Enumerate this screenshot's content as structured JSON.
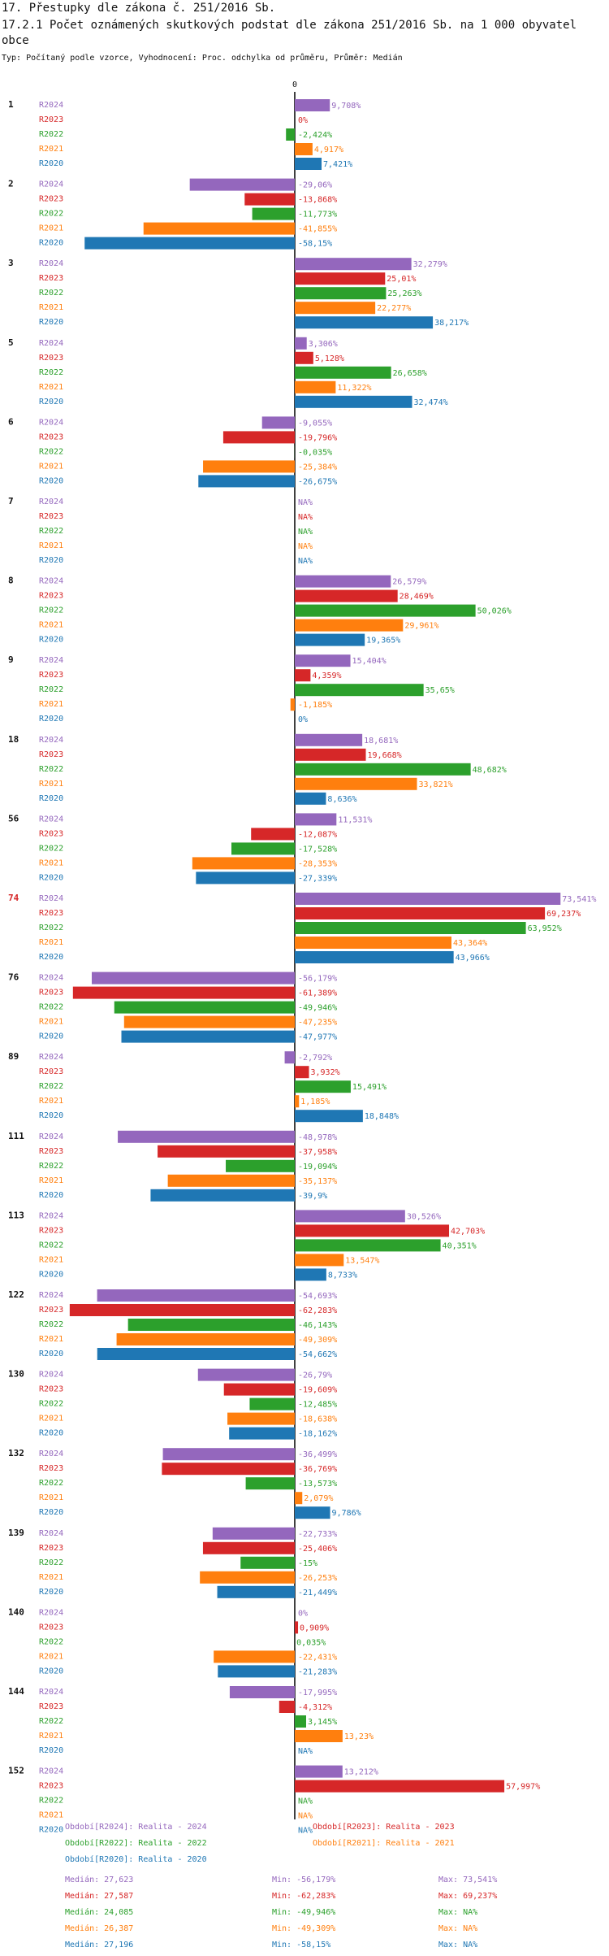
{
  "title": "17. Přestupky dle zákona č. 251/2016 Sb.",
  "subtitle": "17.2.1 Počet oznámených skutkových podstat dle zákona 251/2016 Sb. na 1 000 obyvatel obce",
  "type_line": "Typ: Počítaný podle vzorce, Vyhodnocení: Proc. odchylka od průměru, Průměr: Medián",
  "colors": {
    "R2024": "#9467bd",
    "R2023": "#d62728",
    "R2022": "#2ca02c",
    "R2021": "#ff7f0e",
    "R2020": "#1f77b4",
    "highlight": "#d62728"
  },
  "highlight_group": "74",
  "chart_data": {
    "type": "bar",
    "orientation": "horizontal",
    "axis_zero_label": "0",
    "xlim": [
      -62.283,
      73.541
    ],
    "series_names": [
      "R2024",
      "R2023",
      "R2022",
      "R2021",
      "R2020"
    ],
    "groups": [
      {
        "label": "1",
        "rows": [
          {
            "s": "R2024",
            "v": 9.708,
            "t": "9,708%"
          },
          {
            "s": "R2023",
            "v": 0,
            "t": "0%"
          },
          {
            "s": "R2022",
            "v": -2.424,
            "t": "-2,424%"
          },
          {
            "s": "R2021",
            "v": 4.917,
            "t": "4,917%"
          },
          {
            "s": "R2020",
            "v": 7.421,
            "t": "7,421%"
          }
        ]
      },
      {
        "label": "2",
        "rows": [
          {
            "s": "R2024",
            "v": -29.06,
            "t": "-29,06%"
          },
          {
            "s": "R2023",
            "v": -13.868,
            "t": "-13,868%"
          },
          {
            "s": "R2022",
            "v": -11.773,
            "t": "-11,773%"
          },
          {
            "s": "R2021",
            "v": -41.855,
            "t": "-41,855%"
          },
          {
            "s": "R2020",
            "v": -58.15,
            "t": "-58,15%"
          }
        ]
      },
      {
        "label": "3",
        "rows": [
          {
            "s": "R2024",
            "v": 32.279,
            "t": "32,279%"
          },
          {
            "s": "R2023",
            "v": 25.01,
            "t": "25,01%"
          },
          {
            "s": "R2022",
            "v": 25.263,
            "t": "25,263%"
          },
          {
            "s": "R2021",
            "v": 22.277,
            "t": "22,277%"
          },
          {
            "s": "R2020",
            "v": 38.217,
            "t": "38,217%"
          }
        ]
      },
      {
        "label": "5",
        "rows": [
          {
            "s": "R2024",
            "v": 3.306,
            "t": "3,306%"
          },
          {
            "s": "R2023",
            "v": 5.128,
            "t": "5,128%"
          },
          {
            "s": "R2022",
            "v": 26.658,
            "t": "26,658%"
          },
          {
            "s": "R2021",
            "v": 11.322,
            "t": "11,322%"
          },
          {
            "s": "R2020",
            "v": 32.474,
            "t": "32,474%"
          }
        ]
      },
      {
        "label": "6",
        "rows": [
          {
            "s": "R2024",
            "v": -9.055,
            "t": "-9,055%"
          },
          {
            "s": "R2023",
            "v": -19.796,
            "t": "-19,796%"
          },
          {
            "s": "R2022",
            "v": -0.035,
            "t": "-0,035%"
          },
          {
            "s": "R2021",
            "v": -25.384,
            "t": "-25,384%"
          },
          {
            "s": "R2020",
            "v": -26.675,
            "t": "-26,675%"
          }
        ]
      },
      {
        "label": "7",
        "rows": [
          {
            "s": "R2024",
            "v": null,
            "t": "NA%"
          },
          {
            "s": "R2023",
            "v": null,
            "t": "NA%"
          },
          {
            "s": "R2022",
            "v": null,
            "t": "NA%"
          },
          {
            "s": "R2021",
            "v": null,
            "t": "NA%"
          },
          {
            "s": "R2020",
            "v": null,
            "t": "NA%"
          }
        ]
      },
      {
        "label": "8",
        "rows": [
          {
            "s": "R2024",
            "v": 26.579,
            "t": "26,579%"
          },
          {
            "s": "R2023",
            "v": 28.469,
            "t": "28,469%"
          },
          {
            "s": "R2022",
            "v": 50.026,
            "t": "50,026%"
          },
          {
            "s": "R2021",
            "v": 29.961,
            "t": "29,961%"
          },
          {
            "s": "R2020",
            "v": 19.365,
            "t": "19,365%"
          }
        ]
      },
      {
        "label": "9",
        "rows": [
          {
            "s": "R2024",
            "v": 15.404,
            "t": "15,404%"
          },
          {
            "s": "R2023",
            "v": 4.359,
            "t": "4,359%"
          },
          {
            "s": "R2022",
            "v": 35.65,
            "t": "35,65%"
          },
          {
            "s": "R2021",
            "v": -1.185,
            "t": "-1,185%"
          },
          {
            "s": "R2020",
            "v": 0,
            "t": "0%"
          }
        ]
      },
      {
        "label": "18",
        "rows": [
          {
            "s": "R2024",
            "v": 18.681,
            "t": "18,681%"
          },
          {
            "s": "R2023",
            "v": 19.668,
            "t": "19,668%"
          },
          {
            "s": "R2022",
            "v": 48.682,
            "t": "48,682%"
          },
          {
            "s": "R2021",
            "v": 33.821,
            "t": "33,821%"
          },
          {
            "s": "R2020",
            "v": 8.636,
            "t": "8,636%"
          }
        ]
      },
      {
        "label": "56",
        "rows": [
          {
            "s": "R2024",
            "v": 11.531,
            "t": "11,531%"
          },
          {
            "s": "R2023",
            "v": -12.087,
            "t": "-12,087%"
          },
          {
            "s": "R2022",
            "v": -17.528,
            "t": "-17,528%"
          },
          {
            "s": "R2021",
            "v": -28.353,
            "t": "-28,353%"
          },
          {
            "s": "R2020",
            "v": -27.339,
            "t": "-27,339%"
          }
        ]
      },
      {
        "label": "74",
        "rows": [
          {
            "s": "R2024",
            "v": 73.541,
            "t": "73,541%"
          },
          {
            "s": "R2023",
            "v": 69.237,
            "t": "69,237%"
          },
          {
            "s": "R2022",
            "v": 63.952,
            "t": "63,952%"
          },
          {
            "s": "R2021",
            "v": 43.364,
            "t": "43,364%"
          },
          {
            "s": "R2020",
            "v": 43.966,
            "t": "43,966%"
          }
        ]
      },
      {
        "label": "76",
        "rows": [
          {
            "s": "R2024",
            "v": -56.179,
            "t": "-56,179%"
          },
          {
            "s": "R2023",
            "v": -61.389,
            "t": "-61,389%"
          },
          {
            "s": "R2022",
            "v": -49.946,
            "t": "-49,946%"
          },
          {
            "s": "R2021",
            "v": -47.235,
            "t": "-47,235%"
          },
          {
            "s": "R2020",
            "v": -47.977,
            "t": "-47,977%"
          }
        ]
      },
      {
        "label": "89",
        "rows": [
          {
            "s": "R2024",
            "v": -2.792,
            "t": "-2,792%"
          },
          {
            "s": "R2023",
            "v": 3.932,
            "t": "3,932%"
          },
          {
            "s": "R2022",
            "v": 15.491,
            "t": "15,491%"
          },
          {
            "s": "R2021",
            "v": 1.185,
            "t": "1,185%"
          },
          {
            "s": "R2020",
            "v": 18.848,
            "t": "18,848%"
          }
        ]
      },
      {
        "label": "111",
        "rows": [
          {
            "s": "R2024",
            "v": -48.978,
            "t": "-48,978%"
          },
          {
            "s": "R2023",
            "v": -37.958,
            "t": "-37,958%"
          },
          {
            "s": "R2022",
            "v": -19.094,
            "t": "-19,094%"
          },
          {
            "s": "R2021",
            "v": -35.137,
            "t": "-35,137%"
          },
          {
            "s": "R2020",
            "v": -39.9,
            "t": "-39,9%"
          }
        ]
      },
      {
        "label": "113",
        "rows": [
          {
            "s": "R2024",
            "v": 30.526,
            "t": "30,526%"
          },
          {
            "s": "R2023",
            "v": 42.703,
            "t": "42,703%"
          },
          {
            "s": "R2022",
            "v": 40.351,
            "t": "40,351%"
          },
          {
            "s": "R2021",
            "v": 13.547,
            "t": "13,547%"
          },
          {
            "s": "R2020",
            "v": 8.733,
            "t": "8,733%"
          }
        ]
      },
      {
        "label": "122",
        "rows": [
          {
            "s": "R2024",
            "v": -54.693,
            "t": "-54,693%"
          },
          {
            "s": "R2023",
            "v": -62.283,
            "t": "-62,283%"
          },
          {
            "s": "R2022",
            "v": -46.143,
            "t": "-46,143%"
          },
          {
            "s": "R2021",
            "v": -49.309,
            "t": "-49,309%"
          },
          {
            "s": "R2020",
            "v": -54.662,
            "t": "-54,662%"
          }
        ]
      },
      {
        "label": "130",
        "rows": [
          {
            "s": "R2024",
            "v": -26.79,
            "t": "-26,79%"
          },
          {
            "s": "R2023",
            "v": -19.609,
            "t": "-19,609%"
          },
          {
            "s": "R2022",
            "v": -12.485,
            "t": "-12,485%"
          },
          {
            "s": "R2021",
            "v": -18.638,
            "t": "-18,638%"
          },
          {
            "s": "R2020",
            "v": -18.162,
            "t": "-18,162%"
          }
        ]
      },
      {
        "label": "132",
        "rows": [
          {
            "s": "R2024",
            "v": -36.499,
            "t": "-36,499%"
          },
          {
            "s": "R2023",
            "v": -36.769,
            "t": "-36,769%"
          },
          {
            "s": "R2022",
            "v": -13.573,
            "t": "-13,573%"
          },
          {
            "s": "R2021",
            "v": 2.079,
            "t": "2,079%"
          },
          {
            "s": "R2020",
            "v": 9.786,
            "t": "9,786%"
          }
        ]
      },
      {
        "label": "139",
        "rows": [
          {
            "s": "R2024",
            "v": -22.733,
            "t": "-22,733%"
          },
          {
            "s": "R2023",
            "v": -25.406,
            "t": "-25,406%"
          },
          {
            "s": "R2022",
            "v": -15,
            "t": "-15%"
          },
          {
            "s": "R2021",
            "v": -26.253,
            "t": "-26,253%"
          },
          {
            "s": "R2020",
            "v": -21.449,
            "t": "-21,449%"
          }
        ]
      },
      {
        "label": "140",
        "rows": [
          {
            "s": "R2024",
            "v": 0,
            "t": "0%"
          },
          {
            "s": "R2023",
            "v": 0.909,
            "t": "0,909%"
          },
          {
            "s": "R2022",
            "v": 0.035,
            "t": "0,035%"
          },
          {
            "s": "R2021",
            "v": -22.431,
            "t": "-22,431%"
          },
          {
            "s": "R2020",
            "v": -21.283,
            "t": "-21,283%"
          }
        ]
      },
      {
        "label": "144",
        "rows": [
          {
            "s": "R2024",
            "v": -17.995,
            "t": "-17,995%"
          },
          {
            "s": "R2023",
            "v": -4.312,
            "t": "-4,312%"
          },
          {
            "s": "R2022",
            "v": 3.145,
            "t": "3,145%"
          },
          {
            "s": "R2021",
            "v": 13.23,
            "t": "13,23%"
          },
          {
            "s": "R2020",
            "v": null,
            "t": "NA%"
          }
        ]
      },
      {
        "label": "152",
        "rows": [
          {
            "s": "R2024",
            "v": 13.212,
            "t": "13,212%"
          },
          {
            "s": "R2023",
            "v": 57.997,
            "t": "57,997%"
          },
          {
            "s": "R2022",
            "v": null,
            "t": "NA%"
          },
          {
            "s": "R2021",
            "v": null,
            "t": "NA%"
          },
          {
            "s": "R2020",
            "v": null,
            "t": "NA%"
          }
        ]
      }
    ]
  },
  "legend": {
    "r2024": "Období[R2024]: Realita - 2024",
    "r2023": "Období[R2023]: Realita - 2023",
    "r2022": "Období[R2022]: Realita - 2022",
    "r2021": "Období[R2021]: Realita - 2021",
    "r2020": "Období[R2020]: Realita - 2020"
  },
  "stats": [
    {
      "s": "R2024",
      "median": "Medián: 27,623",
      "min": "Min: -56,179%",
      "max": "Max: 73,541%"
    },
    {
      "s": "R2023",
      "median": "Medián: 27,587",
      "min": "Min: -62,283%",
      "max": "Max: 69,237%"
    },
    {
      "s": "R2022",
      "median": "Medián: 24,085",
      "min": "Min: -49,946%",
      "max": "Max: NA%"
    },
    {
      "s": "R2021",
      "median": "Medián: 26,387",
      "min": "Min: -49,309%",
      "max": "Max: NA%"
    },
    {
      "s": "R2020",
      "median": "Medián: 27,196",
      "min": "Min: -58,15%",
      "max": "Max: NA%"
    }
  ]
}
